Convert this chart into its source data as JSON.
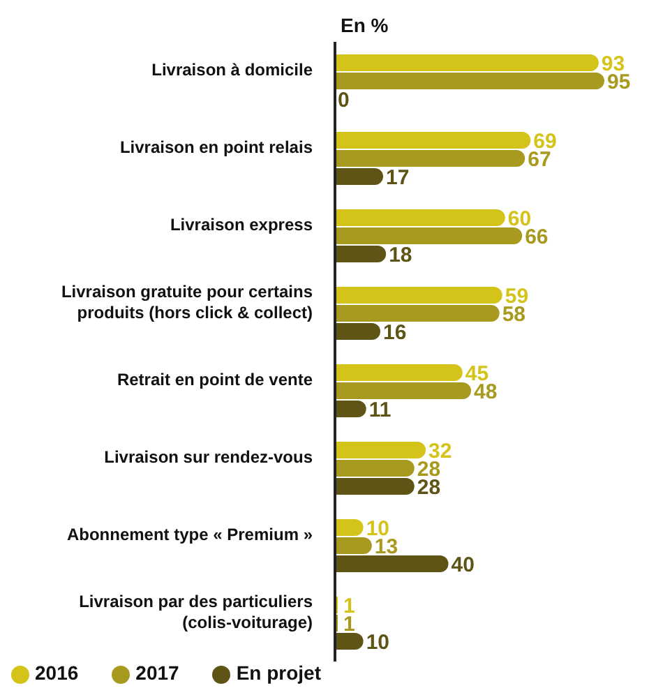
{
  "chart_data": {
    "type": "bar",
    "orientation": "horizontal",
    "xlabel": "En %",
    "categories": [
      "Livraison à domicile",
      "Livraison en point relais",
      "Livraison express",
      "Livraison gratuite pour certains produits (hors click & collect)",
      "Retrait en point de vente",
      "Livraison sur rendez-vous",
      "Abonnement type « Premium »",
      "Livraison par des particuliers (colis-voiturage)"
    ],
    "series": [
      {
        "name": "2016",
        "color": "#d4c41a",
        "values": [
          93,
          69,
          60,
          59,
          45,
          32,
          10,
          1
        ]
      },
      {
        "name": "2017",
        "color": "#a89a1e",
        "values": [
          95,
          67,
          66,
          58,
          48,
          28,
          13,
          1
        ]
      },
      {
        "name": "En projet",
        "color": "#5e5416",
        "values": [
          0,
          17,
          18,
          16,
          11,
          28,
          40,
          10
        ]
      }
    ],
    "data_labels": true,
    "tick_labels": "y",
    "grid": false,
    "legend": "bottom left"
  }
}
